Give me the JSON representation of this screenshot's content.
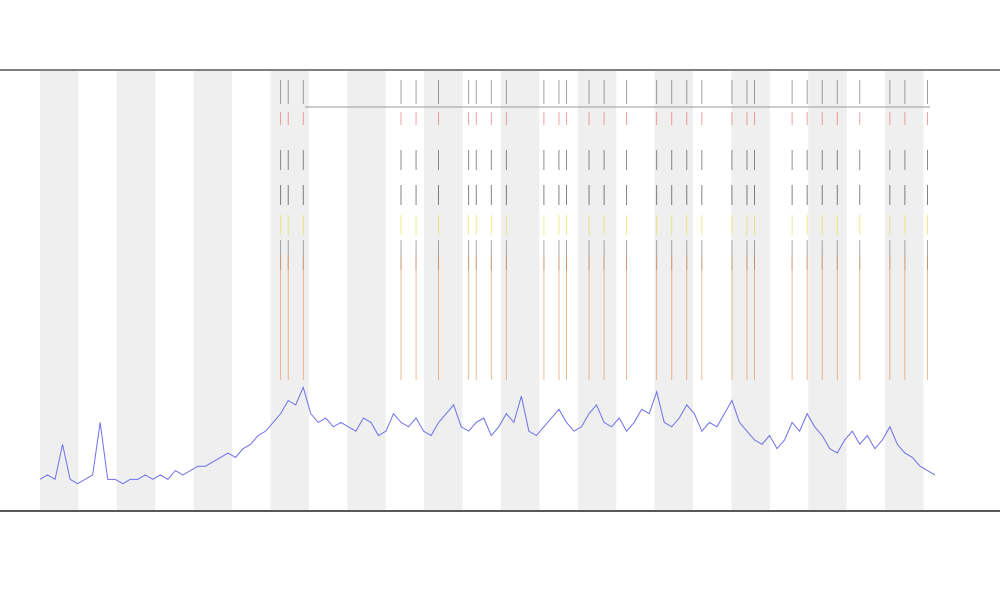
{
  "chart_data": {
    "type": "line",
    "xlim": [
      0,
      119
    ],
    "ylim": [
      0,
      100
    ],
    "series": [
      {
        "color": "#6f6fe8",
        "values": [
          7,
          8,
          7,
          15,
          7,
          6,
          7,
          8,
          20,
          7,
          7,
          6,
          7,
          7,
          8,
          7,
          8,
          7,
          9,
          8,
          9,
          10,
          10,
          11,
          12,
          13,
          12,
          14,
          15,
          17,
          18,
          20,
          22,
          25,
          24,
          28,
          22,
          20,
          21,
          19,
          20,
          19,
          18,
          21,
          20,
          17,
          18,
          22,
          20,
          19,
          21,
          18,
          17,
          20,
          22,
          24,
          19,
          18,
          20,
          21,
          17,
          19,
          22,
          20,
          26,
          18,
          17,
          19,
          21,
          23,
          20,
          18,
          19,
          22,
          24,
          20,
          19,
          21,
          18,
          20,
          23,
          22,
          27,
          20,
          19,
          21,
          24,
          22,
          18,
          20,
          19,
          22,
          25,
          20,
          18,
          16,
          15,
          17,
          14,
          16,
          20,
          18,
          22,
          19,
          17,
          14,
          13,
          16,
          18,
          15,
          17,
          14,
          16,
          19,
          15,
          13,
          12,
          10,
          9,
          8
        ]
      }
    ],
    "events": [
      32,
      33,
      35,
      48,
      50,
      53,
      57,
      58,
      60,
      62,
      67,
      69,
      70,
      73,
      75,
      78,
      82,
      84,
      86,
      88,
      92,
      94,
      95,
      100,
      102,
      104,
      106,
      109,
      113,
      115,
      118
    ],
    "event_color": "#e8823a"
  }
}
